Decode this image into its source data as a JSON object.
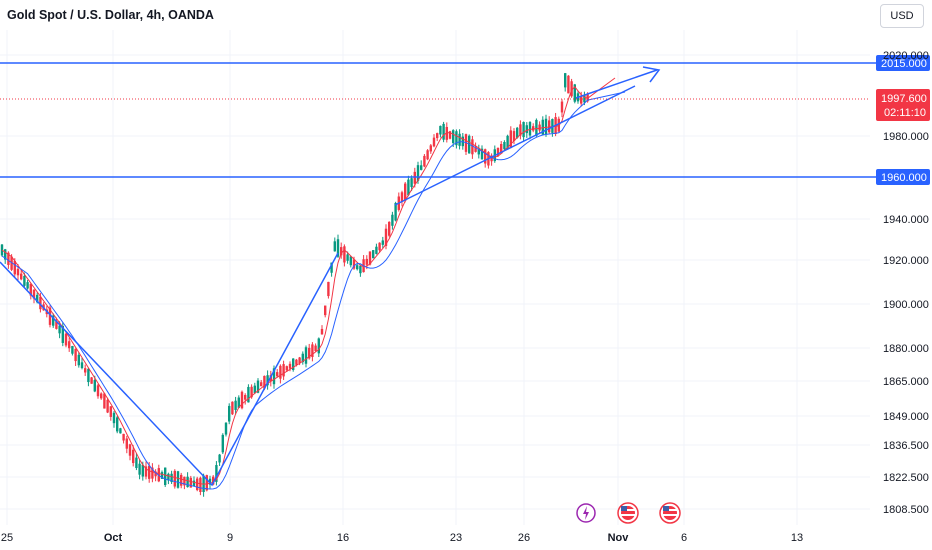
{
  "header": {
    "title": "Gold Spot / U.S. Dollar, 4h, OANDA",
    "currency": "USD"
  },
  "colors": {
    "up": "#089981",
    "down": "#f23645",
    "line": "#2962ff",
    "ma_fast": "#f23645",
    "ma_slow": "#2962ff",
    "grid": "#f0f3fa"
  },
  "chart_data": {
    "type": "candlestick",
    "y_ticks": [
      "2020.000",
      "1980.000",
      "1940.000",
      "1920.000",
      "1900.000",
      "1880.000",
      "1865.000",
      "1849.000",
      "1836.500",
      "1822.500",
      "1808.500"
    ],
    "x_ticks": [
      "25",
      "Oct",
      "9",
      "16",
      "23",
      "26",
      "Nov",
      "6",
      "13"
    ],
    "horizontal_lines": [
      {
        "label": "2015.000"
      },
      {
        "label": "1960.000"
      }
    ],
    "current_price": {
      "label": "1997.600",
      "countdown": "02:11:10"
    },
    "events": [
      "lightning-icon",
      "us-flag-icon",
      "us-flag-icon"
    ]
  }
}
